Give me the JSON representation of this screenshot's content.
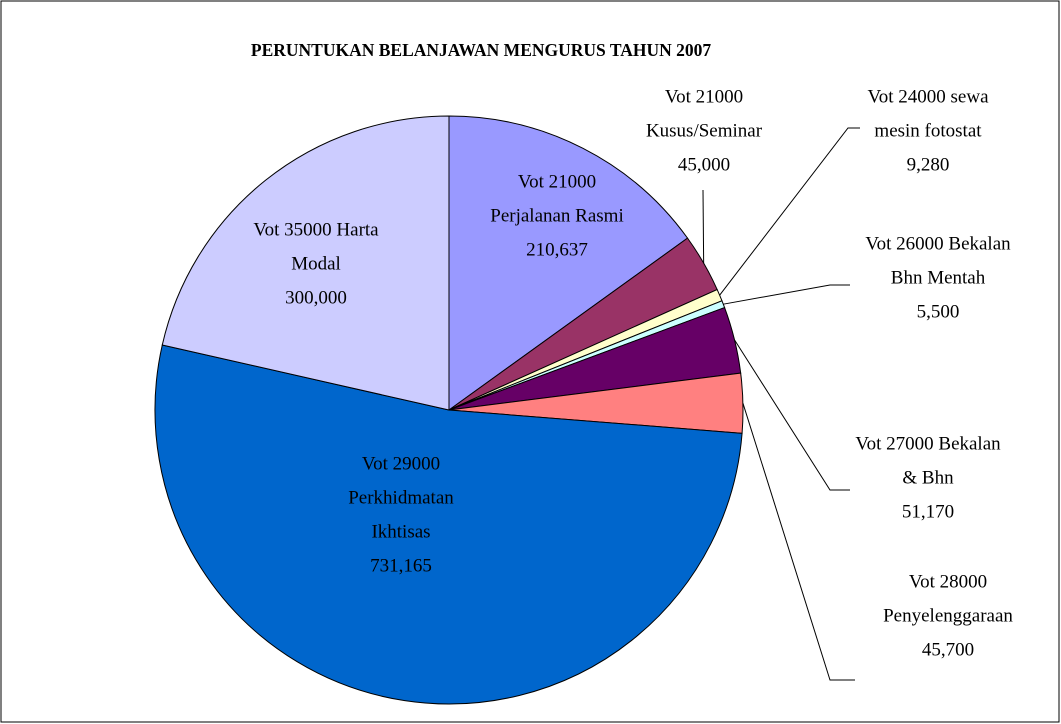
{
  "chart_data": {
    "type": "pie",
    "title": "PERUNTUKAN BELANJAWAN MENGURUS TAHUN 2007",
    "categories": [
      "Vot 21000 Perjalanan Rasmi",
      "Vot 21000 Kusus/Seminar",
      "Vot 24000 sewa mesin fotostat",
      "Vot 26000 Bekalan Bhn Mentah",
      "Vot 27000 Bekalan & Bhn",
      "Vot 28000 Penyelenggaraan",
      "Vot 29000 Perkhidmatan Ikhtisas",
      "Vot 35000 Harta Modal"
    ],
    "values": [
      210637,
      45000,
      9280,
      5500,
      51170,
      45700,
      731165,
      300000
    ],
    "value_labels": [
      "210,637",
      "45,000",
      "9,280",
      "5,500",
      "51,170",
      "45,700",
      "731,165",
      "300,000"
    ],
    "colors": [
      "#9999ff",
      "#993366",
      "#ffffcc",
      "#ccffff",
      "#660066",
      "#ff8080",
      "#0066cc",
      "#ccccff"
    ]
  }
}
